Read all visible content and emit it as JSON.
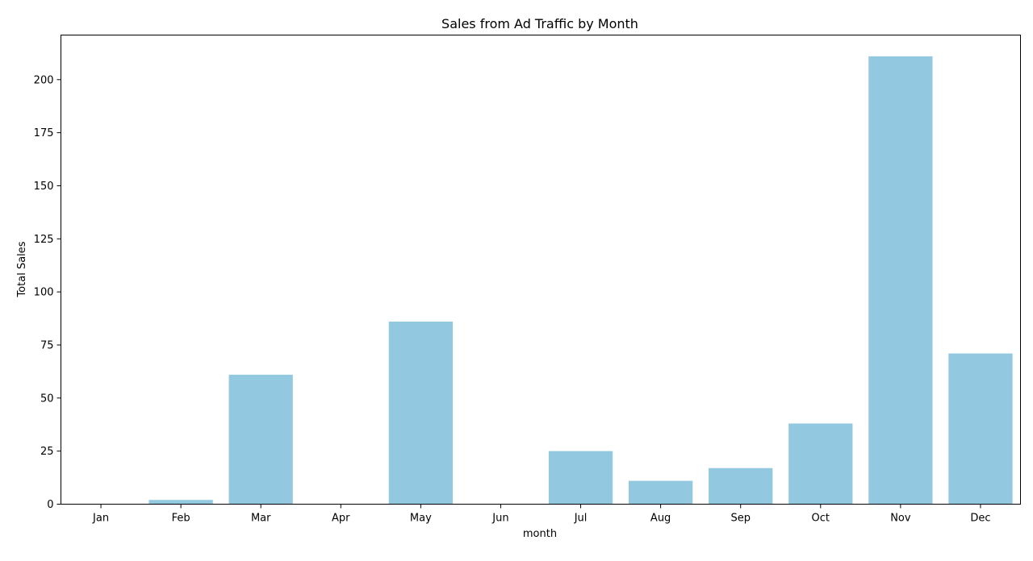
{
  "chart_data": {
    "type": "bar",
    "title": "Sales from Ad Traffic by Month",
    "xlabel": "month",
    "ylabel": "Total Sales",
    "categories": [
      "Jan",
      "Feb",
      "Mar",
      "Apr",
      "May",
      "Jun",
      "Jul",
      "Aug",
      "Sep",
      "Oct",
      "Nov",
      "Dec"
    ],
    "values": [
      0,
      2,
      61,
      0,
      86,
      0,
      25,
      11,
      17,
      38,
      211,
      71
    ],
    "ylim": [
      0,
      221
    ],
    "yticks": [
      0,
      25,
      50,
      75,
      100,
      125,
      150,
      175,
      200
    ],
    "bar_color": "#92c9e0",
    "grid": false,
    "legend": "none"
  }
}
